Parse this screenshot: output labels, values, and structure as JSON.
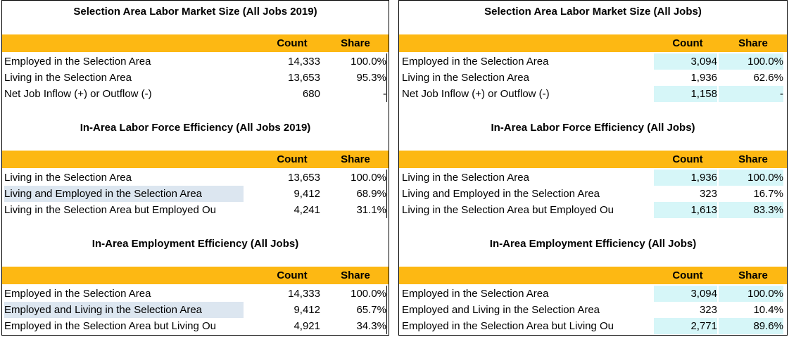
{
  "panels": [
    {
      "sections": [
        {
          "title": "Selection Area Labor Market Size (All Jobs 2019)",
          "count_header": "Count",
          "share_header": "Share",
          "rows": [
            {
              "label": "Employed in the Selection Area",
              "count": "14,333",
              "share": "100.0%"
            },
            {
              "label": "Living in the Selection Area",
              "count": "13,653",
              "share": "95.3%"
            },
            {
              "label": "Net Job Inflow (+) or Outflow (-)",
              "count": "680",
              "share": "-"
            }
          ]
        },
        {
          "title": "In-Area Labor Force Efficiency (All Jobs 2019)",
          "count_header": "Count",
          "share_header": "Share",
          "rows": [
            {
              "label": "Living in the Selection Area",
              "count": "13,653",
              "share": "100.0%"
            },
            {
              "label": "Living and Employed in the Selection Area",
              "count": "9,412",
              "share": "68.9%"
            },
            {
              "label": "Living in the Selection Area but Employed Ou",
              "count": "4,241",
              "share": "31.1%"
            }
          ]
        },
        {
          "title": "In-Area Employment Efficiency (All Jobs)",
          "count_header": "Count",
          "share_header": "Share",
          "rows": [
            {
              "label": "Employed in the Selection Area",
              "count": "14,333",
              "share": "100.0%"
            },
            {
              "label": "Employed and Living in the Selection Area",
              "count": "9,412",
              "share": "65.7%"
            },
            {
              "label": "Employed in the Selection Area but Living Ou",
              "count": "4,921",
              "share": "34.3%"
            }
          ]
        }
      ]
    },
    {
      "sections": [
        {
          "title": "Selection Area Labor Market Size (All Jobs)",
          "count_header": "Count",
          "share_header": "Share",
          "rows": [
            {
              "label": "Employed in the Selection Area",
              "count": "3,094",
              "share": "100.0%"
            },
            {
              "label": "Living in the Selection Area",
              "count": "1,936",
              "share": "62.6%"
            },
            {
              "label": "Net Job Inflow (+) or Outflow (-)",
              "count": "1,158",
              "share": "-"
            }
          ]
        },
        {
          "title": "In-Area Labor Force Efficiency (All Jobs)",
          "count_header": "Count",
          "share_header": "Share",
          "rows": [
            {
              "label": "Living in the Selection Area",
              "count": "1,936",
              "share": "100.0%"
            },
            {
              "label": "Living and Employed in the Selection Area",
              "count": "323",
              "share": "16.7%"
            },
            {
              "label": "Living in the Selection Area but Employed Ou",
              "count": "1,613",
              "share": "83.3%"
            }
          ]
        },
        {
          "title": "In-Area Employment Efficiency (All Jobs)",
          "count_header": "Count",
          "share_header": "Share",
          "rows": [
            {
              "label": "Employed in the Selection Area",
              "count": "3,094",
              "share": "100.0%"
            },
            {
              "label": "Employed and Living in the Selection Area",
              "count": "323",
              "share": "10.4%"
            },
            {
              "label": "Employed in the Selection Area but Living Ou",
              "count": "2,771",
              "share": "89.6%"
            }
          ]
        }
      ]
    }
  ],
  "colors": {
    "header_fill": "#FDB813",
    "row_highlight_blue": "#DCE6F0",
    "cell_highlight_cyan": "#D6F6F8"
  }
}
